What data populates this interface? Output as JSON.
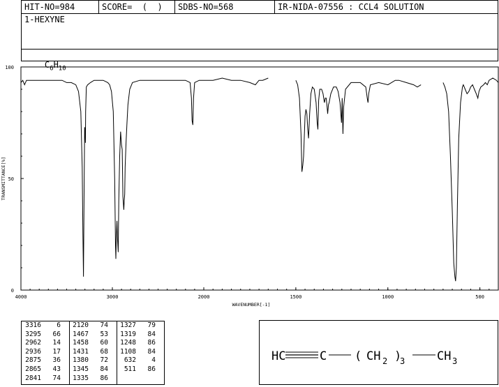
{
  "header": {
    "hit_no": "HIT-NO=984",
    "score": "SCORE=  (  )",
    "sdbs_no": "SDBS-NO=568",
    "ir_nida": "IR-NIDA-07556 : CCL4 SOLUTION",
    "compound_name": "1-HEXYNE",
    "formula": {
      "c": "C",
      "c_sub": "6",
      "h": "H",
      "h_sub": "10"
    }
  },
  "structure": {
    "prefix": "HC",
    "c2": "C",
    "paren_open": "(",
    "ch2": "CH",
    "ch2_sub": "2",
    "paren_close": ")",
    "repeat_sub": "3",
    "ch3": "CH",
    "ch3_sub": "3"
  },
  "peak_table": [
    [
      [
        "3316",
        "6"
      ],
      [
        "3295",
        "66"
      ],
      [
        "2962",
        "14"
      ],
      [
        "2936",
        "17"
      ],
      [
        "2875",
        "36"
      ],
      [
        "2865",
        "43"
      ],
      [
        "2841",
        "74"
      ]
    ],
    [
      [
        "2120",
        "74"
      ],
      [
        "1467",
        "53"
      ],
      [
        "1458",
        "60"
      ],
      [
        "1431",
        "68"
      ],
      [
        "1380",
        "72"
      ],
      [
        "1345",
        "84"
      ],
      [
        "1335",
        "86"
      ]
    ],
    [
      [
        "1327",
        "79"
      ],
      [
        "1319",
        "84"
      ],
      [
        "1248",
        "86"
      ],
      [
        "1108",
        "84"
      ],
      [
        "632",
        "4"
      ],
      [
        "511",
        "86"
      ]
    ]
  ],
  "chart_data": {
    "type": "line",
    "title": "",
    "xlabel": "WAVENUMBER[-1]",
    "ylabel": "TRANSMITTANCE[%]",
    "xlim": [
      4000,
      400
    ],
    "ylim": [
      0,
      100
    ],
    "x_ticks": [
      "4000",
      "3000",
      "2000",
      "1500",
      "1000",
      "500"
    ],
    "y_ticks": [
      "0",
      "50",
      "100"
    ],
    "x_scale_note": "wavenumber axis: 4000-2000 at half scale, 2000-400 at full scale",
    "series": [
      {
        "segments": [
          [
            [
              4000,
              93
            ],
            [
              3980,
              94
            ],
            [
              3960,
              92
            ],
            [
              3940,
              94
            ],
            [
              3900,
              94
            ],
            [
              3800,
              94
            ],
            [
              3700,
              94
            ],
            [
              3600,
              94
            ],
            [
              3550,
              94
            ],
            [
              3500,
              93
            ],
            [
              3450,
              93
            ],
            [
              3400,
              92
            ],
            [
              3370,
              89
            ],
            [
              3345,
              80
            ],
            [
              3330,
              55
            ],
            [
              3322,
              25
            ],
            [
              3316,
              6
            ],
            [
              3310,
              40
            ],
            [
              3303,
              73
            ],
            [
              3299,
              72
            ],
            [
              3295,
              66
            ],
            [
              3292,
              80
            ],
            [
              3285,
              91
            ],
            [
              3270,
              92
            ],
            [
              3240,
              93
            ],
            [
              3200,
              94
            ],
            [
              3150,
              94
            ],
            [
              3100,
              94
            ],
            [
              3050,
              93
            ],
            [
              3030,
              92
            ],
            [
              3010,
              89
            ],
            [
              2990,
              80
            ],
            [
              2975,
              50
            ],
            [
              2966,
              20
            ],
            [
              2962,
              14
            ],
            [
              2958,
              22
            ],
            [
              2950,
              31
            ],
            [
              2945,
              24
            ],
            [
              2940,
              20
            ],
            [
              2936,
              17
            ],
            [
              2930,
              40
            ],
            [
              2920,
              60
            ],
            [
              2910,
              71
            ],
            [
              2900,
              65
            ],
            [
              2892,
              63
            ],
            [
              2885,
              42
            ],
            [
              2875,
              36
            ],
            [
              2870,
              40
            ],
            [
              2865,
              43
            ],
            [
              2860,
              55
            ],
            [
              2850,
              66
            ],
            [
              2841,
              74
            ],
            [
              2830,
              83
            ],
            [
              2810,
              90
            ],
            [
              2780,
              93
            ],
            [
              2700,
              94
            ],
            [
              2600,
              94
            ],
            [
              2500,
              94
            ],
            [
              2400,
              94
            ],
            [
              2300,
              94
            ],
            [
              2200,
              94
            ],
            [
              2150,
              93
            ],
            [
              2135,
              86
            ],
            [
              2128,
              76
            ],
            [
              2120,
              74
            ],
            [
              2112,
              86
            ],
            [
              2100,
              93
            ],
            [
              2050,
              94
            ],
            [
              2000,
              94
            ],
            [
              1950,
              94
            ],
            [
              1900,
              95
            ],
            [
              1850,
              94
            ],
            [
              1800,
              94
            ],
            [
              1750,
              93
            ],
            [
              1720,
              92
            ],
            [
              1700,
              94
            ],
            [
              1680,
              94
            ],
            [
              1650,
              95
            ]
          ],
          [
            [
              1500,
              94
            ],
            [
              1490,
              92
            ],
            [
              1480,
              86
            ],
            [
              1472,
              70
            ],
            [
              1467,
              53
            ],
            [
              1462,
              56
            ],
            [
              1458,
              60
            ],
            [
              1450,
              78
            ],
            [
              1445,
              81
            ],
            [
              1440,
              79
            ],
            [
              1435,
              72
            ],
            [
              1431,
              68
            ],
            [
              1425,
              79
            ],
            [
              1418,
              88
            ],
            [
              1410,
              91
            ],
            [
              1400,
              90
            ],
            [
              1390,
              84
            ],
            [
              1384,
              75
            ],
            [
              1380,
              72
            ],
            [
              1376,
              85
            ],
            [
              1370,
              90
            ],
            [
              1360,
              90
            ],
            [
              1352,
              88
            ],
            [
              1345,
              84
            ],
            [
              1340,
              86
            ],
            [
              1335,
              86
            ],
            [
              1330,
              82
            ],
            [
              1327,
              79
            ],
            [
              1323,
              83
            ],
            [
              1319,
              84
            ],
            [
              1310,
              88
            ],
            [
              1295,
              91
            ],
            [
              1280,
              91
            ],
            [
              1270,
              89
            ],
            [
              1260,
              84
            ],
            [
              1252,
              75
            ],
            [
              1248,
              86
            ],
            [
              1244,
              70
            ],
            [
              1240,
              82
            ],
            [
              1230,
              90
            ],
            [
              1200,
              93
            ],
            [
              1150,
              93
            ],
            [
              1120,
              91
            ],
            [
              1112,
              86
            ],
            [
              1108,
              84
            ],
            [
              1104,
              88
            ],
            [
              1095,
              92
            ],
            [
              1050,
              93
            ],
            [
              1000,
              92
            ],
            [
              980,
              93
            ],
            [
              960,
              94
            ],
            [
              940,
              94
            ],
            [
              900,
              93
            ],
            [
              860,
              92
            ],
            [
              840,
              91
            ],
            [
              820,
              92
            ]
          ],
          [
            [
              700,
              93
            ],
            [
              690,
              91
            ],
            [
              680,
              88
            ],
            [
              670,
              80
            ],
            [
              660,
              60
            ],
            [
              650,
              35
            ],
            [
              642,
              12
            ],
            [
              636,
              6
            ],
            [
              632,
              4
            ],
            [
              628,
              10
            ],
            [
              622,
              38
            ],
            [
              615,
              68
            ],
            [
              605,
              84
            ],
            [
              595,
              91
            ],
            [
              590,
              92
            ],
            [
              580,
              90
            ],
            [
              570,
              88
            ],
            [
              560,
              89
            ],
            [
              550,
              91
            ],
            [
              540,
              92
            ],
            [
              530,
              90
            ],
            [
              520,
              88
            ],
            [
              511,
              86
            ],
            [
              505,
              89
            ],
            [
              495,
              91
            ],
            [
              480,
              92
            ],
            [
              470,
              93
            ],
            [
              460,
              92
            ],
            [
              450,
              94
            ],
            [
              430,
              95
            ],
            [
              410,
              94
            ],
            [
              400,
              93
            ]
          ]
        ]
      }
    ],
    "grid": false,
    "legend": "none"
  }
}
